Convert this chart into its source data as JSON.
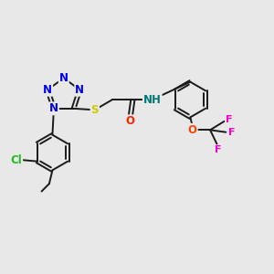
{
  "bg_color": "#e8e8e8",
  "fig_size": [
    3.0,
    3.0
  ],
  "dpi": 100,
  "bond_color": "#1a1a1a",
  "bond_width": 1.4,
  "atom_colors": {
    "N": "#0000ee",
    "S": "#cccc00",
    "O": "#ff2200",
    "O2": "#ff4400",
    "F": "#ff00cc",
    "Cl": "#22bb22",
    "NH": "#007777",
    "C": "#1a1a1a"
  },
  "font_size": 8.5,
  "xlim": [
    0,
    10
  ],
  "ylim": [
    0,
    10
  ]
}
